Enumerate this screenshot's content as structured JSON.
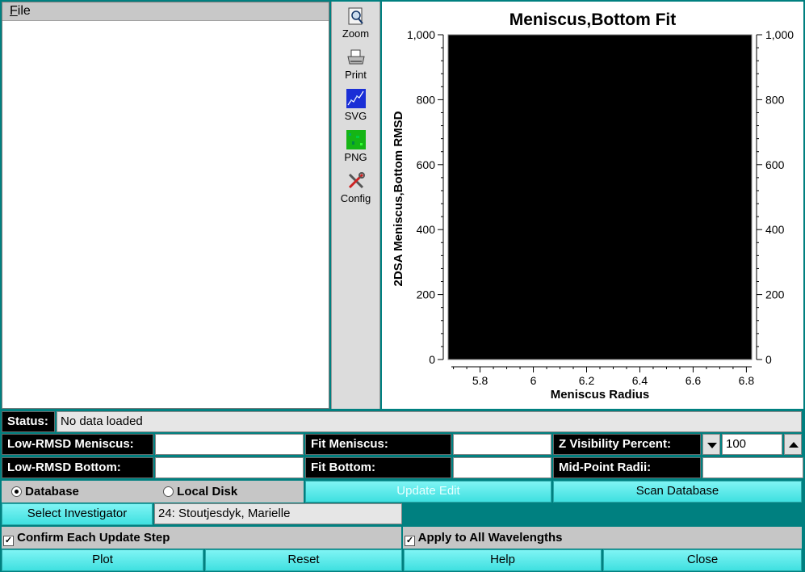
{
  "menu": {
    "file_label_u": "F",
    "file_label_rest": "ile"
  },
  "toolbar": [
    {
      "label": "Zoom",
      "icon": "zoom-icon"
    },
    {
      "label": "Print",
      "icon": "print-icon"
    },
    {
      "label": "SVG",
      "icon": "svg-icon"
    },
    {
      "label": "PNG",
      "icon": "png-icon"
    },
    {
      "label": "Config",
      "icon": "config-icon"
    }
  ],
  "chart_data": {
    "type": "scatter",
    "title": "Meniscus,Bottom Fit",
    "xlabel": "Meniscus Radius",
    "ylabel": "2DSA Meniscus,Bottom RMSD",
    "xlim": [
      5.68,
      6.82
    ],
    "ylim": [
      0,
      1000
    ],
    "xticks": [
      "5.8",
      "6",
      "6.2",
      "6.4",
      "6.6",
      "6.8"
    ],
    "yticks": [
      "0",
      "200",
      "400",
      "600",
      "800",
      "1,000"
    ],
    "plot_background": "#000000",
    "series": []
  },
  "status": {
    "label": "Status:",
    "value": "No data loaded"
  },
  "form": {
    "low_rmsd_meniscus_label": "Low-RMSD Meniscus:",
    "low_rmsd_meniscus_value": "",
    "fit_meniscus_label": "Fit Meniscus:",
    "fit_meniscus_value": "",
    "z_visibility_label": "Z Visibility Percent:",
    "z_visibility_value": "100",
    "low_rmsd_bottom_label": "Low-RMSD Bottom:",
    "low_rmsd_bottom_value": "",
    "fit_bottom_label": "Fit Bottom:",
    "fit_bottom_value": "",
    "midpoint_radii_label": "Mid-Point Radii:",
    "midpoint_radii_value": ""
  },
  "source": {
    "database_label": "Database",
    "local_disk_label": "Local Disk",
    "selected": "Database"
  },
  "buttons": {
    "update_edit": "Update Edit",
    "scan_database": "Scan Database",
    "select_investigator": "Select Investigator",
    "plot": "Plot",
    "reset": "Reset",
    "help": "Help",
    "close": "Close"
  },
  "investigator": {
    "value": "24: Stoutjesdyk, Marielle"
  },
  "options": {
    "confirm_each_label": "Confirm Each Update Step",
    "confirm_each_checked": true,
    "apply_all_label": "Apply to All Wavelengths",
    "apply_all_checked": true
  },
  "colors": {
    "accent": "#008080",
    "button": "#4fe6e6"
  }
}
